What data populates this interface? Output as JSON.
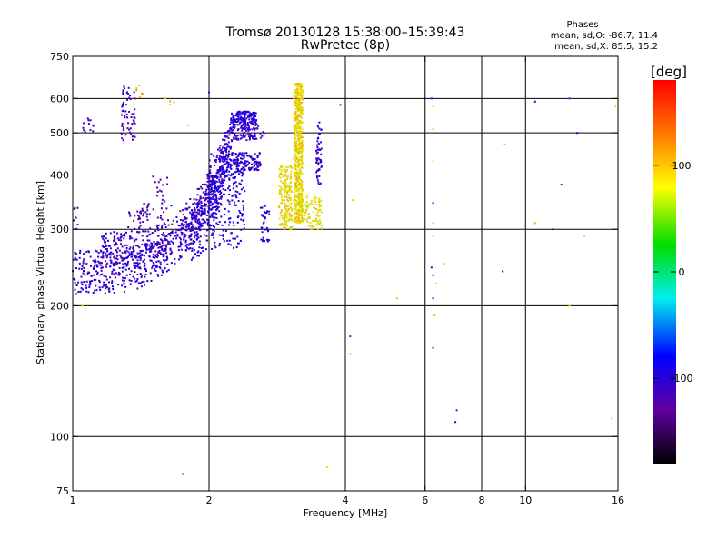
{
  "chart_data": {
    "type": "scatter",
    "title": "Tromsø 20130128 15:38:00–15:39:43",
    "subtitle": "RwPretec (8p)",
    "xlabel": "Frequency [MHz]",
    "ylabel": "Stationary phase Virtual Height [km]",
    "x_scale": "log",
    "y_scale": "log",
    "xlim": [
      1,
      16
    ],
    "ylim": [
      75,
      750
    ],
    "x_ticks": [
      1,
      2,
      4,
      6,
      8,
      10,
      16
    ],
    "y_ticks": [
      75,
      100,
      200,
      300,
      400,
      500,
      600,
      750
    ],
    "x_gridlines": [
      2,
      4,
      6,
      8,
      10
    ],
    "y_gridlines": [
      100,
      200,
      300,
      400,
      500,
      600
    ],
    "phase_stats": {
      "title": "Phases",
      "line_o": "mean, sd,O: -86.7, 11.4",
      "line_x": "mean, sd,X:  85.5, 15.2"
    },
    "colorbar": {
      "label": "[deg]",
      "range": [
        -180,
        180
      ],
      "ticks": [
        100,
        0,
        -100
      ]
    },
    "series": [
      {
        "mode": "O",
        "mean_phase_deg": -86.7,
        "sd_phase_deg": 11.4,
        "bands": [
          {
            "x": [
              1.0,
              2.6
            ],
            "h0": 240,
            "k": 2.0,
            "s": 28,
            "hmax": 450,
            "phase": -105,
            "n": 700
          },
          {
            "x": [
              1.15,
              2.65
            ],
            "h0": 270,
            "k": 2.4,
            "s": 26,
            "hmax": 520,
            "phase": -110,
            "n": 420
          },
          {
            "x": [
              1.8,
              2.55
            ],
            "h0": 300,
            "k": 3.5,
            "s": 45,
            "hmax": 560,
            "phase": -100,
            "n": 380
          },
          {
            "x": [
              2.0,
              2.4
            ],
            "h0": 360,
            "k": 0.0,
            "s": 90,
            "hmax": 560,
            "phase": -95,
            "n": 200
          }
        ],
        "clusters": [
          {
            "x": [
              1.28,
              1.38
            ],
            "h": [
              480,
              640
            ],
            "phase": -110,
            "n": 60
          },
          {
            "x": [
              1.32,
              1.42
            ],
            "h": [
              300,
              330
            ],
            "phase": -115,
            "n": 20
          },
          {
            "x": [
              1.42,
              1.48
            ],
            "h": [
              310,
              345
            ],
            "phase": -112,
            "n": 18
          },
          {
            "x": [
              1.5,
              1.62
            ],
            "h": [
              310,
              400
            ],
            "phase": -120,
            "n": 25
          },
          {
            "x": [
              1.05,
              1.12
            ],
            "h": [
              500,
              540
            ],
            "phase": -115,
            "n": 12
          },
          {
            "x": [
              1.0,
              1.03
            ],
            "h": [
              300,
              340
            ],
            "phase": -115,
            "n": 8
          },
          {
            "x": [
              2.6,
              2.72
            ],
            "h": [
              280,
              340
            ],
            "phase": -100,
            "n": 40
          },
          {
            "x": [
              3.45,
              3.55
            ],
            "h": [
              380,
              530
            ],
            "phase": -105,
            "n": 55
          }
        ],
        "points": [
          [
            1.75,
            82
          ],
          [
            4.1,
            170
          ],
          [
            6.25,
            160
          ],
          [
            6.25,
            208
          ],
          [
            6.25,
            235
          ],
          [
            6.25,
            345
          ],
          [
            6.2,
            245
          ],
          [
            6.2,
            600
          ],
          [
            7.0,
            108
          ],
          [
            7.05,
            115
          ],
          [
            8.9,
            240
          ],
          [
            10.5,
            590
          ],
          [
            11.5,
            300
          ],
          [
            12.0,
            380
          ],
          [
            12.5,
            600
          ],
          [
            13.0,
            500
          ],
          [
            3.9,
            580
          ],
          [
            2.0,
            620
          ],
          [
            1.65,
            340
          ]
        ]
      },
      {
        "mode": "X",
        "mean_phase_deg": 85.5,
        "sd_phase_deg": 15.2,
        "bands": [],
        "clusters": [
          {
            "x": [
              3.08,
              3.22
            ],
            "h": [
              310,
              650
            ],
            "phase": 88,
            "n": 520
          },
          {
            "x": [
              2.85,
              3.05
            ],
            "h": [
              300,
              420
            ],
            "phase": 85,
            "n": 180
          },
          {
            "x": [
              3.2,
              3.55
            ],
            "h": [
              300,
              360
            ],
            "phase": 80,
            "n": 90
          },
          {
            "x": [
              1.38,
              1.44
            ],
            "h": [
              600,
              660
            ],
            "phase": 110,
            "n": 6
          },
          {
            "x": [
              1.6,
              1.68
            ],
            "h": [
              560,
              650
            ],
            "phase": 100,
            "n": 4
          }
        ],
        "points": [
          [
            3.65,
            85
          ],
          [
            4.1,
            155
          ],
          [
            4.15,
            350
          ],
          [
            5.2,
            208
          ],
          [
            6.25,
            290
          ],
          [
            6.25,
            310
          ],
          [
            6.25,
            430
          ],
          [
            6.25,
            510
          ],
          [
            6.25,
            575
          ],
          [
            6.3,
            190
          ],
          [
            6.35,
            225
          ],
          [
            6.6,
            250
          ],
          [
            9.0,
            470
          ],
          [
            10.5,
            310
          ],
          [
            12.5,
            200
          ],
          [
            13.5,
            290
          ],
          [
            15.5,
            110
          ],
          [
            15.8,
            575
          ],
          [
            1.05,
            200
          ],
          [
            1.8,
            520
          ]
        ]
      }
    ]
  }
}
